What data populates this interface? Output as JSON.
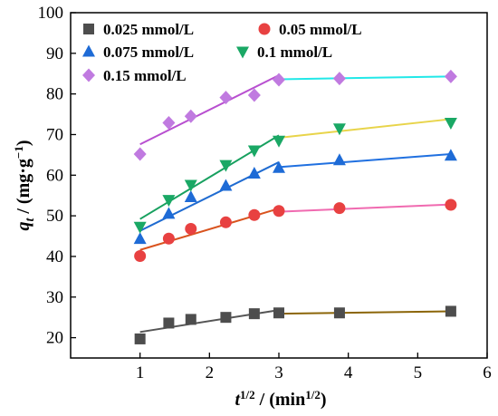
{
  "chart_data": {
    "type": "scatter",
    "xlabel": "t^{1/2} / (min^{1/2})",
    "ylabel": "q_t / (mg·g^{-1})",
    "xlim": [
      0,
      6
    ],
    "ylim": [
      15,
      100
    ],
    "xticks": [
      1,
      2,
      3,
      4,
      5,
      6
    ],
    "yticks": [
      20,
      30,
      40,
      50,
      60,
      70,
      80,
      90,
      100
    ],
    "grid": false,
    "legend_position": "top-left",
    "series": [
      {
        "name": "0.025 mmol/L",
        "marker": "square",
        "color": "#4d4d4d",
        "x": [
          1.0,
          1.414,
          1.732,
          2.236,
          2.646,
          3.0,
          3.873,
          5.477
        ],
        "y": [
          19.7,
          23.6,
          24.5,
          25.0,
          25.9,
          26.1,
          26.1,
          26.5
        ],
        "fit_lines": [
          {
            "x": [
              1.0,
              3.0
            ],
            "y": [
              21.4,
              26.8
            ],
            "color": "#555555"
          },
          {
            "x": [
              3.0,
              5.477
            ],
            "y": [
              25.9,
              26.5
            ],
            "color": "#8b6508"
          }
        ]
      },
      {
        "name": "0.05 mmol/L",
        "marker": "circle",
        "color": "#e84141",
        "x": [
          1.0,
          1.414,
          1.732,
          2.236,
          2.646,
          3.0,
          3.873,
          5.477
        ],
        "y": [
          40.1,
          44.4,
          46.8,
          48.4,
          50.2,
          51.2,
          51.9,
          52.7
        ],
        "fit_lines": [
          {
            "x": [
              1.0,
              3.0
            ],
            "y": [
              41.6,
              51.8
            ],
            "color": "#d9531e"
          },
          {
            "x": [
              3.0,
              5.477
            ],
            "y": [
              51.0,
              52.8
            ],
            "color": "#f06ab0"
          }
        ]
      },
      {
        "name": "0.075 mmol/L",
        "marker": "triangle-up",
        "color": "#1e6bd6",
        "x": [
          1.0,
          1.414,
          1.732,
          2.236,
          2.646,
          3.0,
          3.873,
          5.477
        ],
        "y": [
          44.3,
          50.5,
          54.6,
          57.4,
          60.4,
          61.8,
          63.7,
          64.8
        ],
        "fit_lines": [
          {
            "x": [
              1.0,
              3.0
            ],
            "y": [
              46.3,
              63.2
            ],
            "color": "#1f6bd1"
          },
          {
            "x": [
              3.0,
              5.477
            ],
            "y": [
              62.0,
              65.2
            ],
            "color": "#2070e0"
          }
        ]
      },
      {
        "name": "0.1 mmol/L",
        "marker": "triangle-down",
        "color": "#1aa865",
        "x": [
          1.0,
          1.414,
          1.732,
          2.236,
          2.646,
          3.0,
          3.873,
          5.477
        ],
        "y": [
          47.3,
          53.9,
          57.6,
          62.5,
          66.1,
          68.5,
          71.5,
          72.9
        ],
        "fit_lines": [
          {
            "x": [
              1.0,
              3.0
            ],
            "y": [
              49.2,
              69.8
            ],
            "color": "#17a05f"
          },
          {
            "x": [
              3.0,
              5.477
            ],
            "y": [
              69.2,
              73.8
            ],
            "color": "#e8d44a"
          }
        ]
      },
      {
        "name": "0.15 mmol/L",
        "marker": "diamond",
        "color": "#c07ae0",
        "x": [
          1.0,
          1.414,
          1.732,
          2.236,
          2.646,
          3.0,
          3.873,
          5.477
        ],
        "y": [
          65.2,
          72.9,
          74.5,
          79.1,
          79.7,
          83.5,
          83.8,
          84.3
        ],
        "fit_lines": [
          {
            "x": [
              1.0,
              3.0
            ],
            "y": [
              67.6,
              84.6
            ],
            "color": "#b84fd0"
          },
          {
            "x": [
              3.0,
              5.477
            ],
            "y": [
              83.6,
              84.3
            ],
            "color": "#22e8e8"
          }
        ]
      }
    ]
  }
}
